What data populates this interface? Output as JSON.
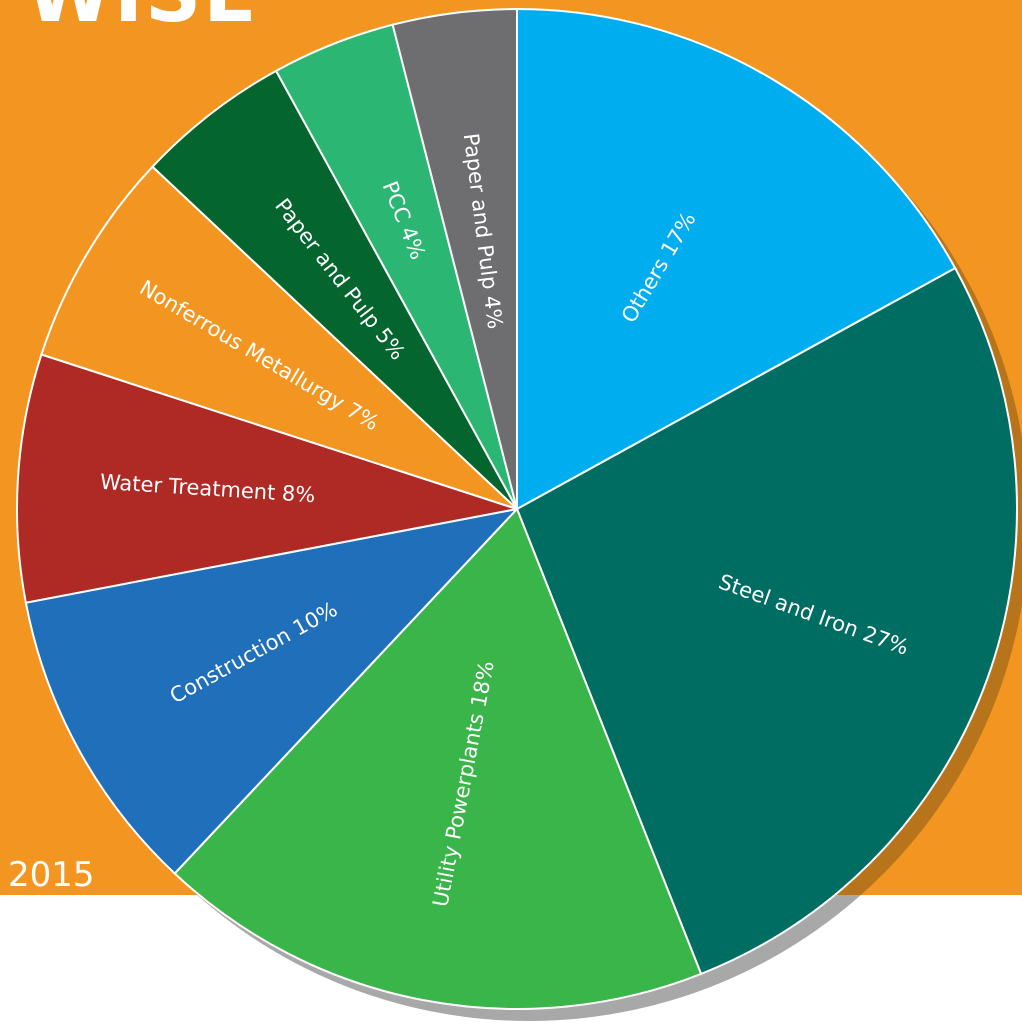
{
  "header": {
    "title": "WISE"
  },
  "footer": {
    "year": "2015"
  },
  "chart_data": {
    "type": "pie",
    "title": "",
    "start_angle_deg": 0,
    "direction": "clockwise",
    "slices": [
      {
        "label": "Others",
        "value": 17,
        "display": "Others 17%",
        "color": "#00adef"
      },
      {
        "label": "Steel and Iron",
        "value": 27,
        "display": "Steel and Iron 27%",
        "color": "#006d63"
      },
      {
        "label": "Utility Powerplants",
        "value": 18,
        "display": "Utility Powerplants 18%",
        "color": "#3ab54a"
      },
      {
        "label": "Construction",
        "value": 10,
        "display": "Construction 10%",
        "color": "#1f6fba"
      },
      {
        "label": "Water Treatment",
        "value": 8,
        "display": "Water Treatment 8%",
        "color": "#af2a25"
      },
      {
        "label": "Nonferrous Metallurgy",
        "value": 7,
        "display": "Nonferrous Metallurgy 7%",
        "color": "#f39621"
      },
      {
        "label": "Paper and Pulp",
        "value": 5,
        "display": "Paper and Pulp 5%",
        "color": "#04652e"
      },
      {
        "label": "PCC",
        "value": 4,
        "display": "PCC 4%",
        "color": "#2bb673"
      },
      {
        "label": "Paper and Pulp",
        "value": 4,
        "display": "Paper and Pulp 4%",
        "color": "#6e6e70"
      }
    ],
    "shadow_color": "#a8a8a8",
    "shadow_color_on_band": "#b8741a"
  }
}
